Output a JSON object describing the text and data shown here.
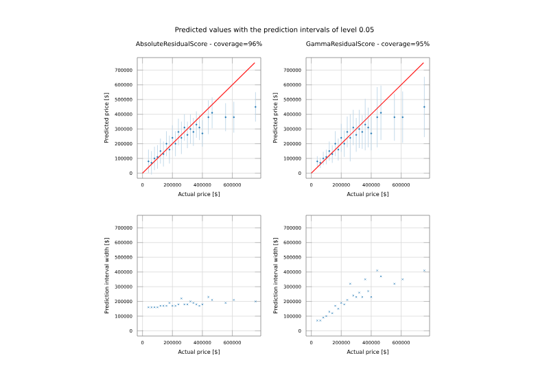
{
  "chart_data": [
    {
      "type": "other",
      "title": "Predicted values with the prediction intervals of level 0.05"
    },
    {
      "type": "scatter",
      "title": "AbsoluteResidualScore - coverage=96%",
      "xlabel": "Actual price [$]",
      "ylabel": "Predicted price [$]",
      "xlim": [
        -35000,
        790000
      ],
      "ylim": [
        -35000,
        785000
      ],
      "xticks": [
        0,
        200000,
        400000,
        600000
      ],
      "yticks": [
        0,
        100000,
        200000,
        300000,
        400000,
        500000,
        600000,
        700000
      ],
      "grid": true,
      "series": [
        {
          "type": "scatter",
          "color": "#1f77b4",
          "marker": "circle",
          "x": [
            40000,
            60000,
            80000,
            100000,
            120000,
            140000,
            160000,
            180000,
            200000,
            220000,
            240000,
            260000,
            280000,
            300000,
            320000,
            340000,
            360000,
            380000,
            400000,
            440000,
            465000,
            555000,
            610000,
            755000
          ],
          "values": [
            80000,
            70000,
            100000,
            110000,
            150000,
            130000,
            200000,
            160000,
            240000,
            200000,
            280000,
            240000,
            310000,
            260000,
            300000,
            280000,
            330000,
            310000,
            270000,
            380000,
            410000,
            380000,
            380000,
            450000
          ],
          "errors": [
            80000,
            80000,
            80000,
            80000,
            85000,
            85000,
            85000,
            95000,
            85000,
            85000,
            90000,
            110000,
            90000,
            90000,
            100000,
            95000,
            90000,
            85000,
            90000,
            115000,
            105000,
            95000,
            105000,
            100000
          ]
        },
        {
          "type": "line",
          "color": "#ff2020",
          "line_style": "solid",
          "x": [
            0,
            750000
          ],
          "values": [
            0,
            750000
          ]
        }
      ]
    },
    {
      "type": "scatter",
      "title": "GammaResidualScore - coverage=95%",
      "xlabel": "Actual price [$]",
      "ylabel": "Predicted price [$]",
      "xlim": [
        -35000,
        790000
      ],
      "ylim": [
        -35000,
        785000
      ],
      "xticks": [
        0,
        200000,
        400000,
        600000
      ],
      "yticks": [
        0,
        100000,
        200000,
        300000,
        400000,
        500000,
        600000,
        700000
      ],
      "grid": true,
      "series": [
        {
          "type": "scatter",
          "color": "#1f77b4",
          "marker": "circle",
          "x": [
            40000,
            60000,
            80000,
            100000,
            120000,
            140000,
            160000,
            180000,
            200000,
            220000,
            240000,
            260000,
            280000,
            300000,
            320000,
            340000,
            360000,
            380000,
            400000,
            440000,
            465000,
            555000,
            610000,
            755000
          ],
          "values": [
            80000,
            70000,
            100000,
            110000,
            150000,
            130000,
            200000,
            160000,
            240000,
            200000,
            280000,
            240000,
            310000,
            260000,
            300000,
            280000,
            330000,
            310000,
            270000,
            380000,
            410000,
            380000,
            380000,
            450000
          ],
          "errors": [
            35000,
            35000,
            45000,
            50000,
            65000,
            60000,
            85000,
            75000,
            95000,
            90000,
            105000,
            160000,
            120000,
            115000,
            130000,
            115000,
            175000,
            135000,
            115000,
            205000,
            185000,
            160000,
            175000,
            205000
          ]
        },
        {
          "type": "line",
          "color": "#ff2020",
          "line_style": "solid",
          "x": [
            0,
            750000
          ],
          "values": [
            0,
            750000
          ]
        }
      ]
    },
    {
      "type": "scatter",
      "xlabel": "Actual price [$]",
      "ylabel": "Prediction interval width [$]",
      "xlim": [
        -35000,
        790000
      ],
      "ylim": [
        -35000,
        785000
      ],
      "xticks": [
        0,
        200000,
        400000,
        600000
      ],
      "yticks": [
        0,
        100000,
        200000,
        300000,
        400000,
        500000,
        600000,
        700000
      ],
      "grid": true,
      "series": [
        {
          "type": "scatter",
          "color": "#1f77b4",
          "marker": "cross",
          "x": [
            40000,
            60000,
            80000,
            100000,
            120000,
            140000,
            160000,
            180000,
            200000,
            220000,
            240000,
            260000,
            280000,
            300000,
            320000,
            340000,
            360000,
            380000,
            400000,
            440000,
            465000,
            555000,
            610000,
            755000
          ],
          "values": [
            160000,
            160000,
            160000,
            160000,
            170000,
            170000,
            170000,
            190000,
            170000,
            170000,
            180000,
            220000,
            180000,
            180000,
            200000,
            190000,
            180000,
            170000,
            180000,
            230000,
            210000,
            190000,
            210000,
            200000
          ]
        }
      ]
    },
    {
      "type": "scatter",
      "xlabel": "Actual price [$]",
      "ylabel": "Prediction interval width [$]",
      "xlim": [
        -35000,
        790000
      ],
      "ylim": [
        -35000,
        785000
      ],
      "xticks": [
        0,
        200000,
        400000,
        600000
      ],
      "yticks": [
        0,
        100000,
        200000,
        300000,
        400000,
        500000,
        600000,
        700000
      ],
      "grid": true,
      "series": [
        {
          "type": "scatter",
          "color": "#1f77b4",
          "marker": "cross",
          "x": [
            40000,
            60000,
            80000,
            100000,
            120000,
            140000,
            160000,
            180000,
            200000,
            220000,
            240000,
            260000,
            280000,
            300000,
            320000,
            340000,
            360000,
            380000,
            400000,
            440000,
            465000,
            555000,
            610000,
            755000
          ],
          "values": [
            70000,
            70000,
            90000,
            100000,
            130000,
            120000,
            170000,
            150000,
            190000,
            180000,
            210000,
            320000,
            240000,
            230000,
            260000,
            230000,
            350000,
            270000,
            230000,
            410000,
            370000,
            320000,
            350000,
            410000
          ]
        }
      ]
    }
  ]
}
